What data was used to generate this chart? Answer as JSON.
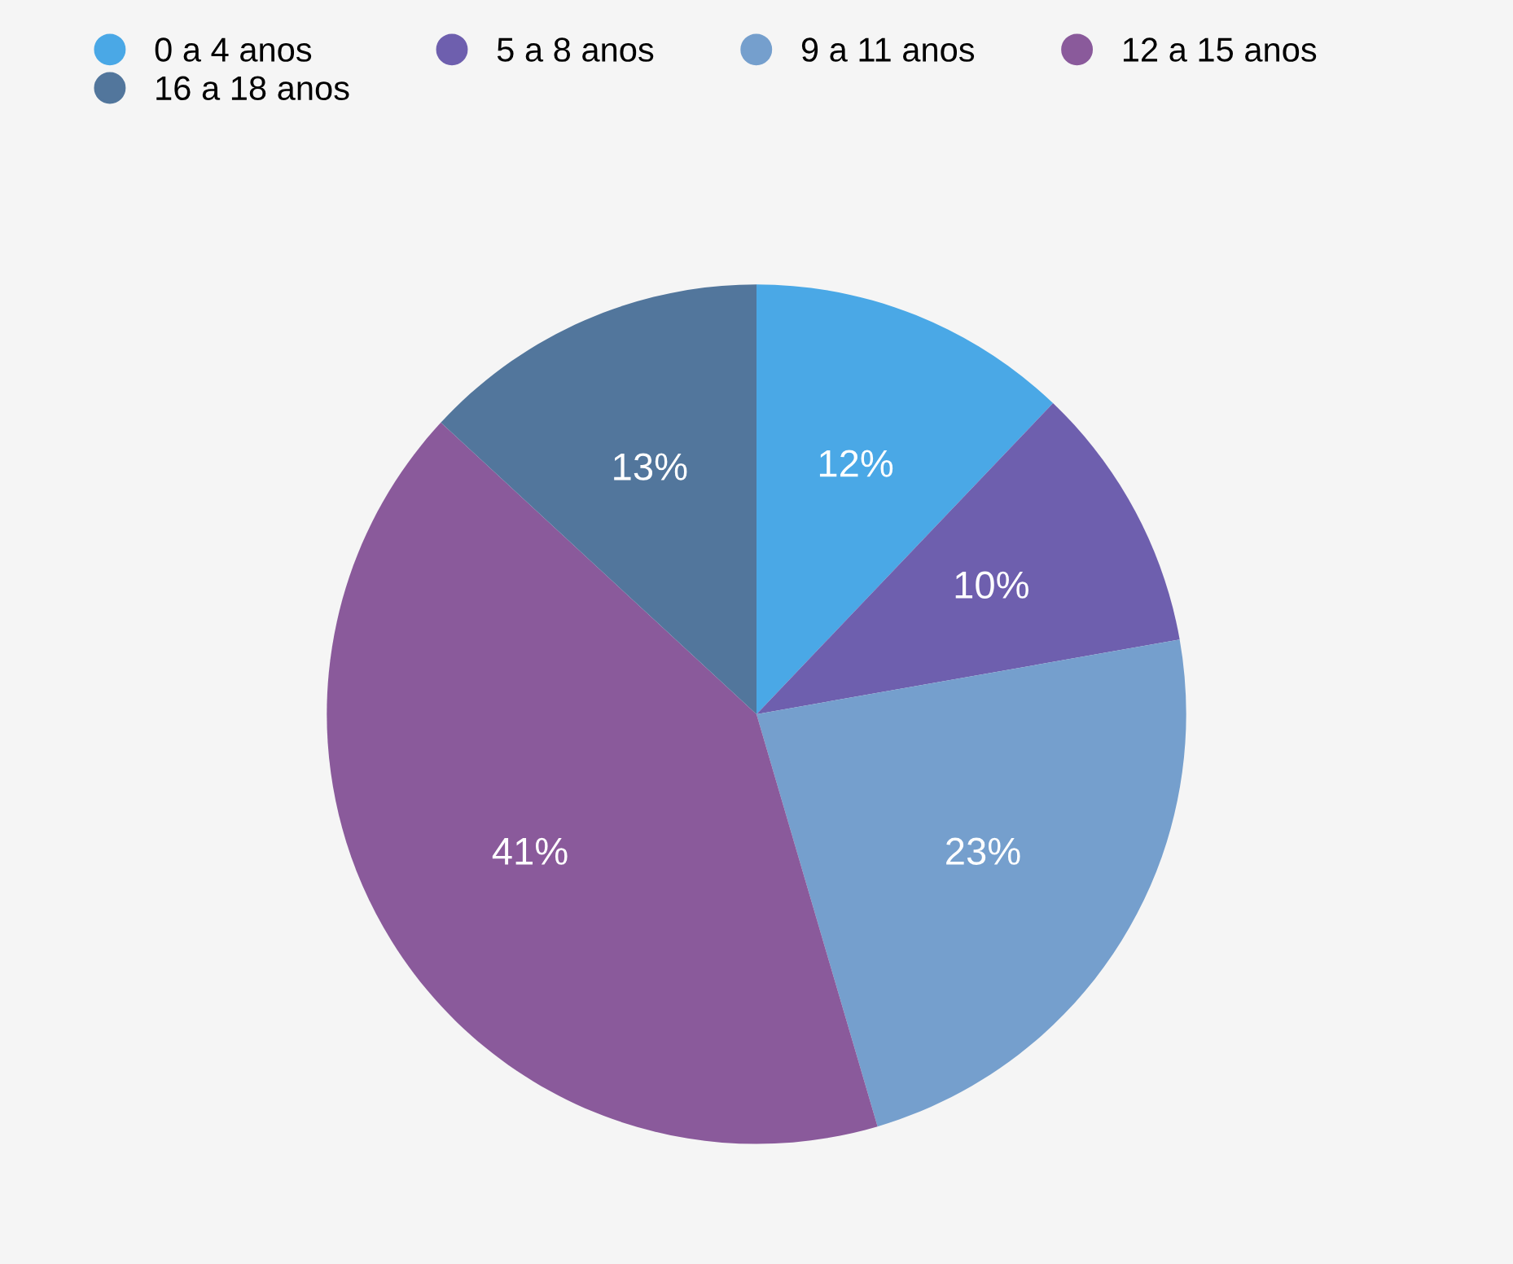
{
  "chart_data": {
    "type": "pie",
    "categories": [
      "0 a 4 anos",
      "5 a 8 anos",
      "9 a 11 anos",
      "12 a 15 anos",
      "16 a 18 anos"
    ],
    "values": [
      12,
      10,
      23,
      41,
      13
    ],
    "colors": [
      "#4aa8e6",
      "#6e5fae",
      "#759fcd",
      "#8a5a9b",
      "#52769c"
    ],
    "value_labels": [
      "12%",
      "10%",
      "23%",
      "41%",
      "13%"
    ],
    "legend": "top left"
  }
}
